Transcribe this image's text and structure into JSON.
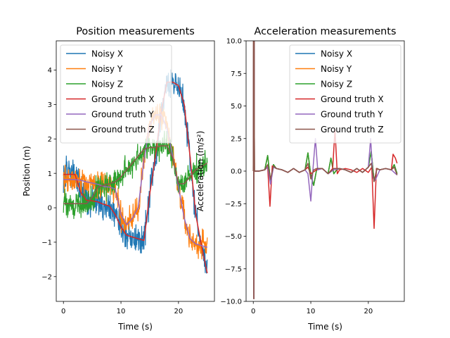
{
  "chart_data": [
    {
      "type": "line",
      "title": "Position measurements",
      "xlabel": "Time (s)",
      "ylabel": "Position (m)",
      "xlim": [
        -1.25,
        26.25
      ],
      "ylim": [
        -2.72,
        4.85
      ],
      "xticks": [
        0,
        10,
        20
      ],
      "yticks": [
        -2,
        -1,
        0,
        1,
        2,
        3,
        4
      ],
      "grid": false,
      "legend_position": "top-left",
      "series": [
        {
          "name": "Noisy X",
          "color": "#1f77b4",
          "noisy": true,
          "noise_amp": 0.32,
          "x": [
            0,
            2,
            3,
            4,
            5,
            6,
            7,
            8,
            9,
            10,
            11,
            12,
            13,
            14,
            15,
            16,
            17,
            18,
            19,
            20,
            21,
            22,
            23,
            24,
            25
          ],
          "y": [
            0.97,
            0.97,
            0.45,
            0.22,
            0.2,
            0.17,
            0.1,
            0.05,
            -0.2,
            -0.55,
            -0.8,
            -0.85,
            -0.9,
            -0.95,
            0.4,
            1.5,
            2.8,
            3.65,
            3.65,
            3.55,
            3.0,
            1.5,
            -0.2,
            -1.1,
            -1.9
          ]
        },
        {
          "name": "Noisy Y",
          "color": "#ff7f0e",
          "noisy": true,
          "noise_amp": 0.3,
          "x": [
            0,
            2,
            3,
            4,
            5,
            6,
            7,
            8,
            9,
            10,
            11,
            12,
            13,
            14,
            15,
            16,
            17,
            18,
            19,
            20,
            21,
            22,
            23,
            24,
            25
          ],
          "y": [
            0.82,
            0.82,
            0.8,
            0.75,
            0.72,
            0.68,
            0.62,
            0.6,
            0.55,
            -0.2,
            -0.5,
            -0.3,
            0.0,
            1.4,
            2.4,
            2.7,
            2.7,
            2.3,
            1.5,
            0.6,
            -0.3,
            -0.9,
            -1.05,
            -1.1,
            -1.15
          ]
        },
        {
          "name": "Noisy Z",
          "color": "#2ca02c",
          "noisy": true,
          "noise_amp": 0.28,
          "x": [
            0,
            2,
            4,
            5,
            6,
            7,
            8,
            9,
            10,
            11,
            12,
            13,
            14,
            15,
            16,
            17,
            18,
            19,
            20,
            21,
            22,
            23,
            24,
            25
          ],
          "y": [
            0.12,
            0.12,
            0.12,
            0.3,
            0.6,
            0.65,
            0.7,
            0.75,
            0.9,
            1.1,
            1.3,
            1.5,
            1.7,
            1.75,
            1.75,
            1.8,
            1.8,
            1.45,
            0.7,
            0.7,
            0.9,
            1.1,
            1.2,
            1.3
          ]
        },
        {
          "name": "Ground truth X",
          "color": "#d62728",
          "noisy": false,
          "x": [
            0,
            2,
            3,
            4,
            5,
            6,
            7,
            8,
            9,
            10,
            11,
            12,
            13,
            14,
            15,
            16,
            17,
            18,
            19,
            20,
            21,
            22,
            23,
            24,
            25
          ],
          "y": [
            0.97,
            0.97,
            0.45,
            0.22,
            0.2,
            0.17,
            0.1,
            0.05,
            -0.2,
            -0.55,
            -0.8,
            -0.85,
            -0.9,
            -0.95,
            0.4,
            1.5,
            2.8,
            3.65,
            3.65,
            3.55,
            3.0,
            1.5,
            -0.2,
            -1.1,
            -1.9
          ]
        },
        {
          "name": "Ground truth Y",
          "color": "#9467bd",
          "noisy": false,
          "x": [
            0,
            2,
            3,
            4,
            5,
            6,
            7,
            8,
            9,
            10,
            11,
            12,
            13,
            14,
            15,
            16,
            17,
            18,
            19,
            20,
            21,
            22,
            23,
            24,
            25
          ],
          "y": [
            0.82,
            0.82,
            0.8,
            0.75,
            0.72,
            0.68,
            0.62,
            0.6,
            0.55,
            -0.2,
            -0.5,
            -0.3,
            0.0,
            1.4,
            2.4,
            2.7,
            2.7,
            2.3,
            1.5,
            0.6,
            -0.3,
            -0.9,
            -1.05,
            -1.1,
            -1.15
          ]
        },
        {
          "name": "Ground truth Z",
          "color": "#8c564b",
          "noisy": false,
          "x": [
            0,
            2,
            4,
            5,
            6,
            7,
            8,
            9,
            10,
            11,
            12,
            13,
            14,
            15,
            16,
            17,
            18,
            19,
            20,
            21,
            22,
            23,
            24,
            25
          ],
          "y": [
            0.12,
            0.12,
            0.12,
            0.3,
            0.6,
            0.65,
            0.7,
            0.75,
            0.9,
            1.1,
            1.3,
            1.5,
            1.7,
            1.75,
            1.75,
            1.8,
            1.8,
            1.45,
            0.7,
            0.7,
            0.9,
            1.1,
            1.2,
            1.3
          ]
        }
      ]
    },
    {
      "type": "line",
      "title": "Acceleration measurements",
      "xlabel": "Time (s)",
      "ylabel": "Acceleration (m/s²)",
      "xlim": [
        -1.25,
        26.25
      ],
      "ylim": [
        -10,
        10
      ],
      "xticks": [
        0,
        10,
        20
      ],
      "yticks": [
        -10.0,
        -7.5,
        -5.0,
        -2.5,
        0.0,
        2.5,
        5.0,
        7.5,
        10.0
      ],
      "ytick_labels": [
        "−10.0",
        "−7.5",
        "−5.0",
        "−2.5",
        "0.0",
        "2.5",
        "5.0",
        "7.5",
        "10.0"
      ],
      "grid": false,
      "legend_position": "top-right",
      "series": [
        {
          "name": "Noisy X",
          "color": "#1f77b4",
          "noisy": false,
          "x": [
            0,
            0.05,
            0.1,
            0.15,
            0.2,
            1,
            2,
            2.5,
            3,
            3.5,
            4,
            5,
            6,
            7,
            8,
            9,
            9.5,
            10,
            10.5,
            11,
            12,
            13,
            13.5,
            14,
            14.5,
            15,
            16,
            17,
            18,
            19,
            20,
            20.5,
            21,
            21.5,
            22,
            23,
            24,
            24.5,
            25
          ],
          "y": [
            0,
            10,
            -9.8,
            10,
            0,
            0,
            0.1,
            1.2,
            -0.8,
            0.5,
            0.2,
            0.1,
            -0.1,
            0.2,
            -0.1,
            0.1,
            1.4,
            -0.3,
            -1.1,
            0.1,
            0.2,
            -0.2,
            1.0,
            -0.2,
            0.1,
            0.2,
            0.1,
            -0.1,
            0.2,
            -0.1,
            0.3,
            1.5,
            -0.8,
            0.2,
            0.1,
            0.2,
            0.1,
            0.5,
            -0.2
          ]
        },
        {
          "name": "Noisy Y",
          "color": "#ff7f0e",
          "noisy": false,
          "x": [
            0,
            0.05,
            0.1,
            0.15,
            0.2,
            1,
            2,
            2.5,
            3,
            3.5,
            4,
            5,
            6,
            7,
            8,
            9,
            9.5,
            10,
            10.5,
            11,
            12,
            13,
            13.5,
            14,
            14.5,
            15,
            16,
            17,
            18,
            19,
            20,
            20.5,
            21,
            21.5,
            22,
            23,
            24,
            24.5,
            25
          ],
          "y": [
            0,
            10,
            -9.8,
            10,
            0,
            0,
            0.1,
            1.2,
            -0.8,
            0.5,
            0.2,
            0.1,
            -0.1,
            0.2,
            -0.1,
            0.1,
            1.4,
            -0.3,
            -1.1,
            0.1,
            0.2,
            -0.2,
            1.0,
            -0.2,
            0.1,
            0.2,
            0.1,
            -0.1,
            0.2,
            -0.1,
            0.3,
            1.5,
            -0.8,
            0.2,
            0.1,
            0.2,
            0.1,
            0.5,
            -0.2
          ]
        },
        {
          "name": "Noisy Z",
          "color": "#2ca02c",
          "noisy": false,
          "x": [
            0,
            0.05,
            0.1,
            0.15,
            0.2,
            1,
            2,
            2.5,
            3,
            3.5,
            4,
            5,
            6,
            7,
            8,
            9,
            9.5,
            10,
            10.5,
            11,
            12,
            13,
            13.5,
            14,
            14.5,
            15,
            16,
            17,
            18,
            19,
            20,
            20.5,
            21,
            21.5,
            22,
            23,
            24,
            24.5,
            25
          ],
          "y": [
            0,
            10,
            -9.8,
            10,
            0,
            0,
            0.1,
            1.2,
            -0.8,
            0.5,
            0.2,
            0.1,
            -0.1,
            0.2,
            -0.1,
            0.1,
            1.4,
            -0.3,
            -1.1,
            0.1,
            0.2,
            -0.2,
            1.0,
            -0.2,
            0.1,
            0.2,
            0.1,
            -0.1,
            0.2,
            -0.1,
            0.3,
            1.5,
            -0.8,
            0.2,
            0.1,
            0.2,
            0.1,
            0.5,
            -0.2
          ]
        },
        {
          "name": "Ground truth X",
          "color": "#d62728",
          "noisy": false,
          "x": [
            0,
            0.05,
            0.1,
            0.15,
            0.2,
            1,
            2,
            2.5,
            2.9,
            3.3,
            4,
            5,
            6,
            7,
            8,
            9,
            9.5,
            10,
            11,
            12,
            13,
            13.8,
            14.2,
            14.6,
            15,
            16,
            17,
            18,
            19,
            20,
            20.6,
            21,
            21.4,
            22,
            23,
            24,
            24.3,
            24.7,
            25
          ],
          "y": [
            0,
            10,
            -9.8,
            10,
            0,
            0,
            0.1,
            0.3,
            -2.7,
            0.4,
            0.2,
            0.1,
            -0.1,
            0.2,
            -0.1,
            0.1,
            0.3,
            -0.2,
            0.1,
            0.2,
            -0.2,
            0.2,
            3.2,
            -0.2,
            0.1,
            0.2,
            0.1,
            -0.1,
            0.2,
            -0.1,
            0.3,
            -4.4,
            0.2,
            0.1,
            0.2,
            0.1,
            1.3,
            1.0,
            0.6
          ]
        },
        {
          "name": "Ground truth Y",
          "color": "#9467bd",
          "noisy": false,
          "x": [
            0,
            0.05,
            0.1,
            0.15,
            0.2,
            1,
            2,
            2.5,
            3,
            3.5,
            4,
            5,
            6,
            7,
            8,
            9,
            9.5,
            10,
            10.4,
            10.8,
            11.2,
            12,
            13,
            14,
            15,
            16,
            17,
            18,
            19,
            20,
            20.4,
            20.8,
            21.2,
            22,
            23,
            24,
            25
          ],
          "y": [
            0,
            10,
            -9.8,
            10,
            0,
            0,
            0.1,
            0.3,
            -1.0,
            0.3,
            0.2,
            0.1,
            -0.1,
            0.2,
            -0.1,
            0.1,
            -0.2,
            -2.3,
            0.3,
            2.5,
            0.1,
            0.2,
            -0.2,
            0.1,
            0.2,
            0.1,
            -0.1,
            0.2,
            -0.1,
            0.3,
            2.5,
            -0.5,
            -0.7,
            0.1,
            0.2,
            0.1,
            -0.3
          ]
        },
        {
          "name": "Ground truth Z",
          "color": "#8c564b",
          "noisy": false,
          "x": [
            0,
            0.05,
            0.1,
            0.15,
            0.2,
            1,
            2,
            2.5,
            3,
            3.5,
            4,
            5,
            6,
            7,
            8,
            9,
            9.5,
            10,
            10.5,
            11,
            12,
            13,
            14,
            15,
            16,
            17,
            18,
            19,
            20,
            20.5,
            21,
            21.5,
            22,
            23,
            24,
            24.5,
            25
          ],
          "y": [
            0,
            10,
            -9.8,
            10,
            0,
            0,
            0.1,
            0.5,
            -0.6,
            0.4,
            0.2,
            0.1,
            -0.1,
            0.2,
            -0.1,
            0.1,
            0.6,
            -0.6,
            0.1,
            0.2,
            0.2,
            -0.2,
            0.2,
            0.2,
            0.1,
            -0.1,
            0.2,
            -0.1,
            0.3,
            0.6,
            -0.8,
            0.2,
            0.1,
            0.2,
            0.1,
            0.3,
            -0.3
          ]
        }
      ]
    }
  ]
}
